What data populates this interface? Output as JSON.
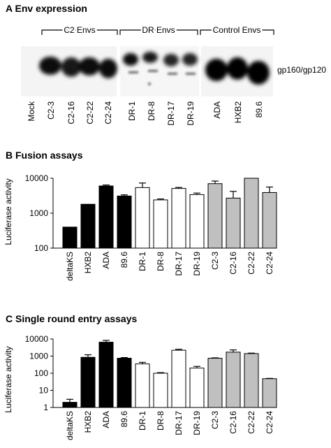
{
  "panelA": {
    "title": "A  Env expression",
    "groups": [
      "C2 Envs",
      "DR Envs",
      "Control Envs"
    ],
    "lanes": [
      "Mock",
      "C2-3",
      "C2-16",
      "C2-22",
      "C2-24",
      "DR-1",
      "DR-8",
      "DR-17",
      "DR-19",
      "ADA",
      "HXB2",
      "89.6"
    ],
    "band_label": "gp160/gp120"
  },
  "panelB": {
    "title": "B  Fusion assays",
    "ylabel": "Luciferase activity"
  },
  "panelC": {
    "title": "C  Single round entry assays",
    "ylabel": "Luciferase activity"
  },
  "chart_data": [
    {
      "type": "bar",
      "title": "Fusion assays",
      "ylabel": "Luciferase activity",
      "yscale": "log",
      "ylim": [
        100,
        10000
      ],
      "yticks": [
        100,
        1000,
        10000
      ],
      "categories": [
        "deltaKS",
        "HXB2",
        "ADA",
        "89.6",
        "DR-1",
        "DR-8",
        "DR-17",
        "DR-19",
        "C2-3",
        "C2-16",
        "C2-22",
        "C2-24"
      ],
      "values": [
        400,
        1800,
        6000,
        3100,
        5400,
        2400,
        5100,
        3400,
        7000,
        2700,
        10000,
        3900
      ],
      "errors": [
        0,
        0,
        400,
        250,
        1900,
        150,
        350,
        350,
        1300,
        1500,
        0,
        1700
      ],
      "colors": [
        "#000000",
        "#000000",
        "#000000",
        "#000000",
        "#ffffff",
        "#ffffff",
        "#ffffff",
        "#ffffff",
        "#c0c0c0",
        "#c0c0c0",
        "#c0c0c0",
        "#c0c0c0"
      ],
      "grid": false
    },
    {
      "type": "bar",
      "title": "Single round entry assays",
      "ylabel": "Luciferase activity",
      "yscale": "log",
      "ylim": [
        1,
        10000
      ],
      "yticks": [
        1,
        10,
        100,
        1000,
        10000
      ],
      "categories": [
        "deltaKS",
        "HXB2",
        "ADA",
        "89.6",
        "DR-1",
        "DR-8",
        "DR-17",
        "DR-19",
        "C2-3",
        "C2-16",
        "C2-22",
        "C2-24"
      ],
      "values": [
        2,
        850,
        6500,
        750,
        350,
        100,
        2200,
        200,
        750,
        1700,
        1400,
        48
      ],
      "errors": [
        1,
        350,
        1800,
        70,
        80,
        8,
        300,
        50,
        40,
        600,
        90,
        2
      ],
      "colors": [
        "#000000",
        "#000000",
        "#000000",
        "#000000",
        "#ffffff",
        "#ffffff",
        "#ffffff",
        "#ffffff",
        "#c0c0c0",
        "#c0c0c0",
        "#c0c0c0",
        "#c0c0c0"
      ],
      "grid": false
    }
  ]
}
